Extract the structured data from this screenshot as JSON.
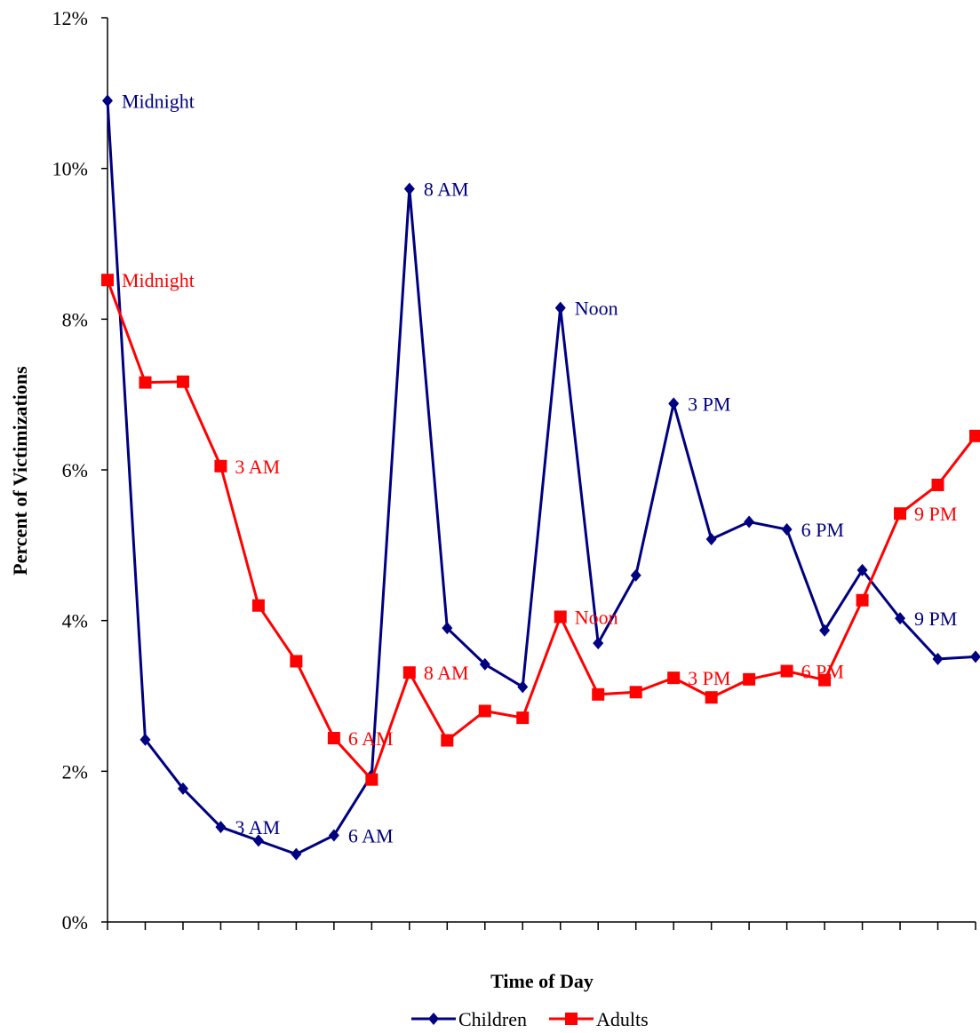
{
  "chart_data": {
    "type": "line",
    "title": "",
    "xlabel": "Time of Day",
    "ylabel": "Percent of Victimizations",
    "ylim": [
      0,
      12
    ],
    "y_ticks": [
      0,
      2,
      4,
      6,
      8,
      10,
      12
    ],
    "y_tick_labels": [
      "0%",
      "2%",
      "4%",
      "6%",
      "8%",
      "10%",
      "12%"
    ],
    "y_unit": "%",
    "x": [
      0,
      1,
      2,
      3,
      4,
      5,
      6,
      7,
      8,
      9,
      10,
      11,
      12,
      13,
      14,
      15,
      16,
      17,
      18,
      19,
      20,
      21,
      22,
      23
    ],
    "grid": false,
    "legend_position": "bottom",
    "series": [
      {
        "name": "Children",
        "color": "#000080",
        "marker": "diamond",
        "values": [
          10.9,
          2.42,
          1.77,
          1.26,
          1.08,
          0.9,
          1.15,
          1.95,
          9.73,
          3.9,
          3.42,
          3.12,
          8.15,
          3.7,
          4.6,
          6.88,
          5.08,
          5.31,
          5.21,
          3.87,
          4.67,
          4.03,
          3.49,
          3.52
        ],
        "labels": [
          {
            "index": 0,
            "text": "Midnight"
          },
          {
            "index": 3,
            "text": "3 AM"
          },
          {
            "index": 6,
            "text": "6 AM"
          },
          {
            "index": 8,
            "text": "8 AM"
          },
          {
            "index": 12,
            "text": "Noon"
          },
          {
            "index": 15,
            "text": "3 PM"
          },
          {
            "index": 18,
            "text": "6 PM"
          },
          {
            "index": 21,
            "text": "9 PM"
          }
        ]
      },
      {
        "name": "Adults",
        "color": "#ff0000",
        "marker": "square",
        "values": [
          8.52,
          7.16,
          7.17,
          6.05,
          4.2,
          3.46,
          2.44,
          1.89,
          3.31,
          2.41,
          2.8,
          2.71,
          4.05,
          3.02,
          3.05,
          3.24,
          2.98,
          3.22,
          3.33,
          3.21,
          4.27,
          5.42,
          5.8,
          6.45
        ],
        "labels": [
          {
            "index": 0,
            "text": "Midnight"
          },
          {
            "index": 3,
            "text": "3 AM"
          },
          {
            "index": 6,
            "text": "6 AM"
          },
          {
            "index": 8,
            "text": "8 AM"
          },
          {
            "index": 12,
            "text": "Noon"
          },
          {
            "index": 15,
            "text": "3 PM"
          },
          {
            "index": 18,
            "text": "6 PM"
          },
          {
            "index": 21,
            "text": "9 PM"
          }
        ]
      }
    ]
  }
}
